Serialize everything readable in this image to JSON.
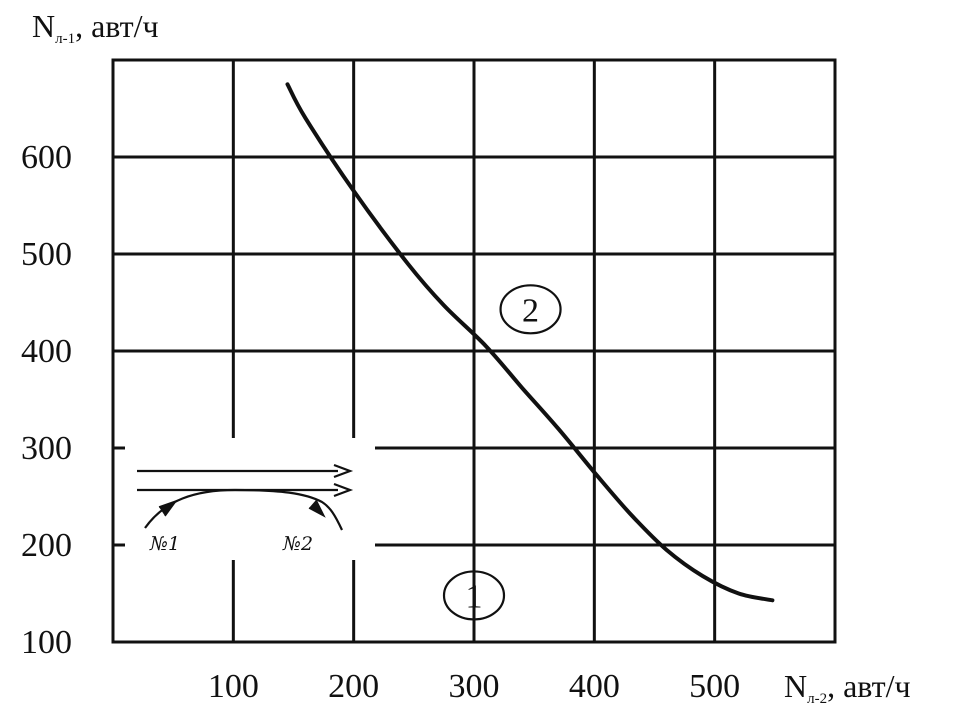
{
  "chart_data": {
    "type": "line",
    "title": "",
    "xlabel": {
      "main": "N",
      "subscript": "л-2",
      "unit": ", авт/ч"
    },
    "ylabel": {
      "main": "N",
      "subscript": "л-1",
      "unit": ", авт/ч"
    },
    "xlim": [
      0,
      600
    ],
    "ylim": [
      100,
      700
    ],
    "x_ticks": [
      100,
      200,
      300,
      400,
      500
    ],
    "y_ticks": [
      100,
      200,
      300,
      400,
      500,
      600
    ],
    "grid": true,
    "series": [
      {
        "x": [
          145,
          160,
          200,
          245,
          275,
          310,
          340,
          370,
          400,
          430,
          460,
          490,
          520,
          548
        ],
        "y": [
          675,
          640,
          565,
          490,
          447,
          405,
          362,
          320,
          275,
          232,
          195,
          168,
          150,
          143
        ]
      }
    ],
    "regions": [
      {
        "label": "1",
        "x": 300,
        "y": 148
      },
      {
        "label": "2",
        "x": 347,
        "y": 443
      }
    ]
  },
  "inset": {
    "label_a": "№1",
    "label_b": "№2"
  },
  "colors": {
    "ink": "#111111",
    "background": "#ffffff"
  }
}
